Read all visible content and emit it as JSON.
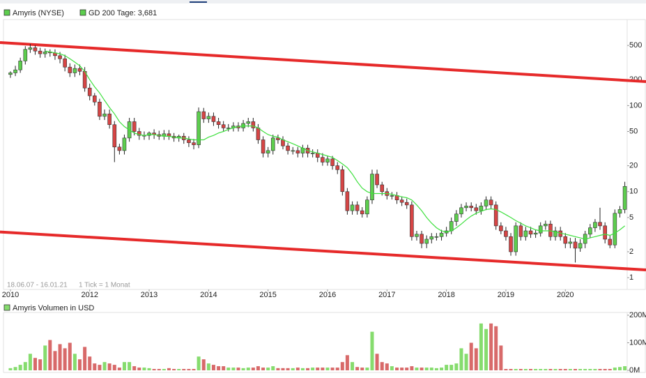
{
  "chart_data": [
    {
      "type": "candlestick",
      "name": "Amyris (NYSE)",
      "date_range": "18.06.07 - 16.01.21",
      "note": "1 Tick = 1 Monat",
      "log_scale": true,
      "grid": false,
      "up_color": "#5dce4e",
      "down_color": "#d64545",
      "wick_color": "#222222",
      "xlim": [
        2010.55,
        2021.04
      ],
      "xticks": [
        {
          "value": 2010.667,
          "label": "2010"
        },
        2012,
        2013,
        2014,
        2015,
        2016,
        2017,
        2018,
        2019,
        2020
      ],
      "ylim": [
        0.73,
        1000
      ],
      "yticks": [
        500,
        200,
        100,
        50,
        20,
        10,
        5,
        2,
        1
      ],
      "x": [
        2010.667,
        2010.75,
        2010.833,
        2010.917,
        2011,
        2011.083,
        2011.167,
        2011.25,
        2011.333,
        2011.417,
        2011.5,
        2011.583,
        2011.667,
        2011.75,
        2011.833,
        2011.917,
        2012,
        2012.083,
        2012.167,
        2012.25,
        2012.333,
        2012.417,
        2012.5,
        2012.583,
        2012.667,
        2012.75,
        2012.833,
        2012.917,
        2013,
        2013.083,
        2013.167,
        2013.25,
        2013.333,
        2013.417,
        2013.5,
        2013.583,
        2013.667,
        2013.75,
        2013.833,
        2013.917,
        2014,
        2014.083,
        2014.167,
        2014.25,
        2014.333,
        2014.417,
        2014.5,
        2014.583,
        2014.667,
        2014.75,
        2014.833,
        2014.917,
        2015,
        2015.083,
        2015.167,
        2015.25,
        2015.333,
        2015.417,
        2015.5,
        2015.583,
        2015.667,
        2015.75,
        2015.833,
        2015.917,
        2016,
        2016.083,
        2016.167,
        2016.25,
        2016.333,
        2016.417,
        2016.5,
        2016.583,
        2016.667,
        2016.75,
        2016.833,
        2016.917,
        2017,
        2017.083,
        2017.167,
        2017.25,
        2017.333,
        2017.417,
        2017.5,
        2017.583,
        2017.667,
        2017.75,
        2017.833,
        2017.917,
        2018,
        2018.083,
        2018.167,
        2018.25,
        2018.333,
        2018.417,
        2018.5,
        2018.583,
        2018.667,
        2018.75,
        2018.833,
        2018.917,
        2019,
        2019.083,
        2019.167,
        2019.25,
        2019.333,
        2019.417,
        2019.5,
        2019.583,
        2019.667,
        2019.75,
        2019.833,
        2019.917,
        2020,
        2020.083,
        2020.167,
        2020.25,
        2020.333,
        2020.417,
        2020.5,
        2020.583,
        2020.667,
        2020.75,
        2020.833,
        2020.917,
        2021
      ],
      "open": [
        230,
        240,
        260,
        330,
        450,
        470,
        430,
        400,
        420,
        410,
        380,
        350,
        280,
        240,
        270,
        250,
        160,
        130,
        110,
        75,
        80,
        60,
        33,
        30,
        42,
        65,
        50,
        45,
        45,
        48,
        46,
        44,
        47,
        44,
        42,
        44,
        40,
        37,
        35,
        85,
        70,
        75,
        65,
        60,
        55,
        55,
        58,
        55,
        62,
        65,
        55,
        40,
        28,
        30,
        42,
        40,
        34,
        30,
        30,
        28,
        32,
        28,
        28,
        25,
        22,
        24,
        20,
        18,
        10,
        6,
        7,
        6,
        5.5,
        8,
        16,
        12,
        10,
        9,
        9,
        8,
        7.5,
        7,
        3,
        3.2,
        2.5,
        2.8,
        3,
        3,
        3.3,
        3.5,
        4.5,
        5.5,
        6.5,
        6.8,
        6.5,
        6,
        6.8,
        8,
        7,
        4,
        3.5,
        3,
        2,
        4,
        3,
        3.5,
        3.2,
        3.3,
        4,
        4.2,
        3,
        3.5,
        3,
        2.5,
        2.6,
        2.2,
        2.5,
        3.2,
        3.8,
        4.4,
        4,
        2.8,
        2.4,
        5.6,
        6.2
      ],
      "high": [
        250,
        290,
        360,
        490,
        520,
        500,
        470,
        460,
        450,
        450,
        420,
        390,
        310,
        300,
        300,
        280,
        180,
        140,
        120,
        90,
        90,
        66,
        36,
        46,
        72,
        72,
        55,
        50,
        50,
        53,
        51,
        52,
        52,
        48,
        46,
        48,
        44,
        41,
        95,
        94,
        83,
        83,
        72,
        66,
        61,
        64,
        64,
        68,
        72,
        72,
        61,
        44,
        33,
        46,
        46,
        44,
        37,
        33,
        33,
        35,
        35,
        31,
        31,
        28,
        26,
        26,
        22,
        20,
        11,
        7.7,
        7.7,
        6.6,
        8.8,
        18,
        18,
        13,
        11,
        9.9,
        9.9,
        8.8,
        8.3,
        7.7,
        3.5,
        3.5,
        3.1,
        3.3,
        3.3,
        3.6,
        3.9,
        5,
        6.1,
        7.2,
        7.5,
        7.5,
        7.2,
        7.5,
        8.8,
        8.8,
        7.7,
        4.4,
        3.9,
        3.3,
        4.4,
        4.4,
        3.9,
        3.9,
        3.6,
        4.4,
        4.6,
        4.6,
        3.9,
        3.9,
        3.3,
        2.9,
        2.9,
        2.8,
        3.5,
        4.2,
        4.8,
        6.5,
        4.4,
        3.1,
        6.2,
        6.8,
        13
      ],
      "low": [
        210,
        220,
        240,
        300,
        410,
        390,
        360,
        360,
        370,
        340,
        310,
        250,
        215,
        215,
        225,
        145,
        115,
        100,
        68,
        68,
        54,
        22,
        27,
        27,
        38,
        45,
        40,
        40,
        40,
        41,
        40,
        40,
        40,
        38,
        38,
        36,
        33,
        31,
        32,
        63,
        63,
        58,
        54,
        50,
        50,
        50,
        50,
        50,
        56,
        50,
        36,
        25,
        25,
        27,
        36,
        31,
        27,
        27,
        25,
        25,
        25,
        25,
        22,
        20,
        20,
        18,
        16,
        9,
        5.4,
        5.4,
        5.4,
        5,
        5,
        7.2,
        11,
        9,
        8.1,
        8.1,
        7.2,
        6.8,
        6.3,
        2.7,
        2.7,
        2.2,
        2.2,
        2.5,
        2.7,
        2.7,
        3,
        3.2,
        4,
        5,
        5.9,
        5.9,
        5.4,
        5.4,
        6.1,
        6.3,
        3.6,
        3.2,
        2.7,
        1.8,
        1.8,
        2.7,
        2.7,
        2.9,
        2.9,
        3,
        3.6,
        2.7,
        2.7,
        2.7,
        2.2,
        2.2,
        1.5,
        2,
        2.2,
        2.9,
        3.4,
        3.6,
        2.5,
        2.2,
        2.2,
        5,
        5.6
      ],
      "close": [
        240,
        260,
        330,
        450,
        470,
        430,
        400,
        420,
        410,
        380,
        350,
        280,
        240,
        270,
        250,
        160,
        130,
        110,
        75,
        80,
        60,
        33,
        30,
        42,
        65,
        50,
        45,
        45,
        48,
        46,
        44,
        47,
        44,
        42,
        44,
        40,
        37,
        35,
        85,
        70,
        75,
        65,
        60,
        55,
        55,
        58,
        55,
        62,
        65,
        55,
        40,
        28,
        30,
        42,
        40,
        34,
        30,
        30,
        28,
        32,
        28,
        28,
        25,
        22,
        24,
        20,
        18,
        10,
        6,
        7,
        6,
        5.5,
        8,
        16,
        12,
        10,
        9,
        9,
        8,
        7.5,
        7,
        3,
        3.2,
        2.5,
        2.8,
        3,
        3,
        3.3,
        3.5,
        4.5,
        5.5,
        6.5,
        6.8,
        6.5,
        6,
        6.8,
        8,
        7,
        4,
        3.5,
        3,
        2,
        4,
        3,
        3.5,
        3.2,
        3.3,
        4,
        4.2,
        3,
        3.5,
        3,
        2.5,
        2.6,
        2.2,
        2.5,
        3.2,
        3.8,
        4.4,
        4,
        2.8,
        2.4,
        5.6,
        6.2,
        11.5
      ],
      "ma": {
        "name": "GD 200 Tage: 3,681",
        "color": "#3ee03e",
        "values": [
          null,
          null,
          null,
          null,
          null,
          null,
          null,
          430,
          420,
          410,
          400,
          380,
          350,
          320,
          290,
          250,
          200,
          165,
          140,
          115,
          95,
          80,
          65,
          57,
          52,
          48,
          46,
          45,
          46,
          46,
          45,
          44,
          44,
          43,
          42,
          42,
          41,
          40,
          40,
          40,
          43,
          45,
          48,
          50,
          53,
          55,
          57,
          58,
          58,
          58,
          55,
          50,
          46,
          44,
          43,
          40,
          38,
          36,
          34,
          32,
          30,
          29,
          28,
          27,
          26,
          25,
          23,
          21,
          19,
          16,
          13,
          11,
          10,
          9.5,
          9.5,
          9.5,
          9.5,
          9.3,
          9,
          8.7,
          8.5,
          8,
          7,
          6,
          5,
          4.3,
          3.8,
          3.5,
          3.4,
          3.5,
          3.8,
          4.2,
          4.7,
          5.2,
          5.6,
          5.9,
          6.2,
          6.3,
          6.2,
          5.8,
          5.4,
          5,
          4.6,
          4.3,
          4,
          3.8,
          3.6,
          3.5,
          3.5,
          3.5,
          3.4,
          3.3,
          3.2,
          3.1,
          3,
          2.9,
          2.8,
          2.9,
          3,
          3.1,
          3.2,
          3.1,
          3.3,
          3.6,
          4
        ]
      },
      "trendlines": [
        {
          "color": "#e62a2a",
          "values": [
            540,
            190
          ]
        },
        {
          "color": "#e62a2a",
          "values": [
            3.4,
            1.23
          ]
        }
      ]
    },
    {
      "type": "bar",
      "title": "Amyris Volumen in USD",
      "up_color": "#86dc6e",
      "down_color": "#d86a6a",
      "ylim": [
        0,
        210
      ],
      "yticks": [
        {
          "value": 200,
          "label": "200M"
        },
        {
          "value": 100,
          "label": "100M"
        },
        {
          "value": 0,
          "label": "0M"
        }
      ],
      "values": [
        8,
        12,
        20,
        30,
        60,
        45,
        40,
        90,
        110,
        70,
        95,
        80,
        100,
        60,
        40,
        85,
        50,
        25,
        20,
        30,
        25,
        20,
        10,
        30,
        30,
        15,
        10,
        10,
        8,
        5,
        5,
        5,
        8,
        5,
        5,
        5,
        5,
        5,
        50,
        40,
        25,
        20,
        15,
        15,
        10,
        10,
        10,
        8,
        10,
        10,
        15,
        10,
        10,
        15,
        8,
        8,
        8,
        8,
        10,
        8,
        8,
        10,
        10,
        10,
        10,
        10,
        10,
        30,
        55,
        30,
        12,
        10,
        10,
        140,
        60,
        30,
        25,
        15,
        10,
        10,
        10,
        15,
        10,
        10,
        10,
        10,
        8,
        10,
        20,
        20,
        25,
        80,
        60,
        100,
        80,
        170,
        150,
        170,
        160,
        90,
        5,
        5,
        5,
        5,
        5,
        5,
        5,
        5,
        5,
        5,
        5,
        5,
        5,
        5,
        5,
        5,
        5,
        5,
        5,
        5,
        5,
        5,
        10,
        12,
        15
      ]
    }
  ]
}
